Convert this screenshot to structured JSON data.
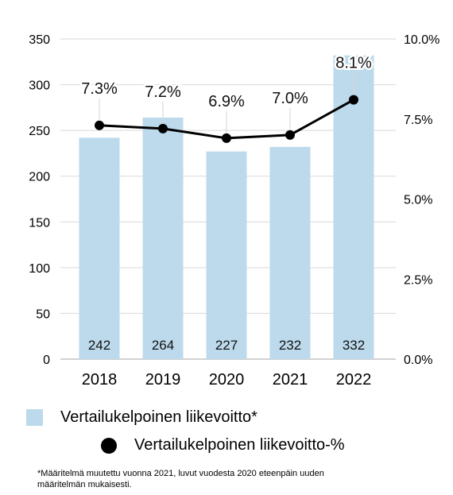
{
  "chart_data": {
    "type": "bar+line",
    "categories": [
      "2018",
      "2019",
      "2020",
      "2021",
      "2022"
    ],
    "series": [
      {
        "name": "Vertailukelpoinen liikevoitto*",
        "type": "bar",
        "axis": "left",
        "values": [
          242,
          264,
          227,
          232,
          332
        ],
        "labels": [
          "242",
          "264",
          "227",
          "232",
          "332"
        ]
      },
      {
        "name": "Vertailukelpoinen liikevoitto-%",
        "type": "line",
        "axis": "right",
        "values": [
          7.3,
          7.2,
          6.9,
          7.0,
          8.1
        ],
        "labels": [
          "7.3%",
          "7.2%",
          "6.9%",
          "7.0%",
          "8.1%"
        ]
      }
    ],
    "y_left": {
      "ylim": [
        0,
        350
      ],
      "ticks": [
        "0",
        "50",
        "100",
        "150",
        "200",
        "250",
        "300",
        "350"
      ]
    },
    "y_right": {
      "ylim": [
        0,
        10
      ],
      "ticks": [
        "0.0%",
        "2.5%",
        "5.0%",
        "7.5%",
        "10.0%"
      ]
    },
    "grid": true,
    "legend_position": "bottom",
    "colors": {
      "bar": "#bcdaec",
      "line": "#000000",
      "grid": "#d9d9d9"
    }
  },
  "footnote": "*Määritelmä muutettu vuonna 2021, luvut vuodesta 2020 eteenpäin uuden määritelmän mukaisesti."
}
